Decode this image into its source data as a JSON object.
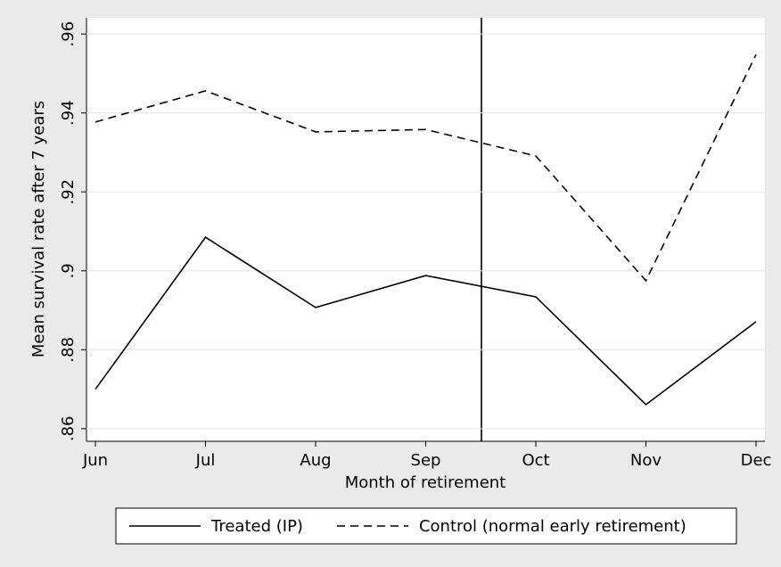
{
  "chart_data": {
    "type": "line",
    "x_label": "Month of retirement",
    "y_label": "Mean survival rate after 7 years",
    "categories": [
      "Jun",
      "Jul",
      "Aug",
      "Sep",
      "Oct",
      "Nov",
      "Dec"
    ],
    "series": [
      {
        "name": "Treated (IP)",
        "color": "#000000",
        "line_style": "solid",
        "values": [
          0.87,
          0.9085,
          0.8907,
          0.8988,
          0.8934,
          0.8661,
          0.8871
        ]
      },
      {
        "name": "Control (normal early retirement)",
        "color": "#000000",
        "line_style": "dashed",
        "values": [
          0.9377,
          0.9456,
          0.9352,
          0.9358,
          0.9291,
          0.8975,
          0.9548
        ]
      }
    ],
    "ylim": [
      0.8568,
      0.9641
    ],
    "yticks": [
      {
        "value": 0.86,
        "label": ".86"
      },
      {
        "value": 0.88,
        "label": ".88"
      },
      {
        "value": 0.9,
        "label": ".9"
      },
      {
        "value": 0.92,
        "label": ".92"
      },
      {
        "value": 0.94,
        "label": ".94"
      },
      {
        "value": 0.96,
        "label": ".96"
      }
    ],
    "grid": true,
    "legend": "bottom"
  }
}
